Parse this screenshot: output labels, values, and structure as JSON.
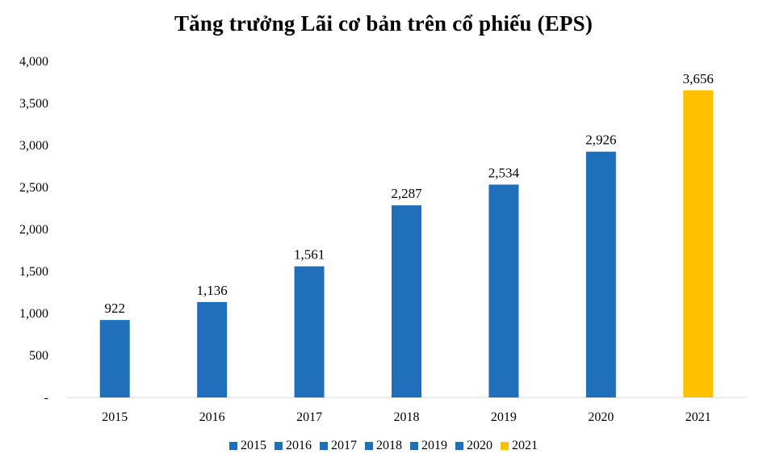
{
  "chart_data": {
    "type": "bar",
    "title": "Tăng trưởng Lãi cơ bản trên cổ phiếu (EPS)",
    "categories": [
      "2015",
      "2016",
      "2017",
      "2018",
      "2019",
      "2020",
      "2021"
    ],
    "values": [
      922,
      1136,
      1561,
      2287,
      2534,
      2926,
      3656
    ],
    "value_labels": [
      "922",
      "1,136",
      "1,561",
      "2,287",
      "2,534",
      "2,926",
      "3,656"
    ],
    "colors": [
      "#1F6FBA",
      "#1F6FBA",
      "#1F6FBA",
      "#1F6FBA",
      "#1F6FBA",
      "#1F6FBA",
      "#FFC000"
    ],
    "ylim": [
      0,
      4000
    ],
    "yticks": [
      0,
      500,
      1000,
      1500,
      2000,
      2500,
      3000,
      3500,
      4000
    ],
    "ytick_labels": [
      "-",
      "500",
      "1,000",
      "1,500",
      "2,000",
      "2,500",
      "3,000",
      "3,500",
      "4,000"
    ],
    "xlabel": "",
    "ylabel": "",
    "grid": false,
    "legend": {
      "position": "bottom",
      "entries": [
        "2015",
        "2016",
        "2017",
        "2018",
        "2019",
        "2020",
        "2021"
      ]
    }
  }
}
